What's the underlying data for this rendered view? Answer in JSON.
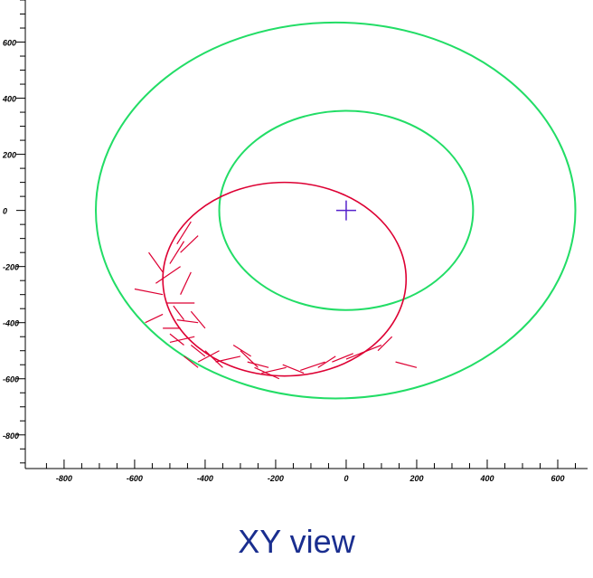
{
  "caption": "XY view",
  "chart_data": {
    "type": "scatter",
    "xlim": [
      -910,
      700
    ],
    "ylim": [
      -920,
      750
    ],
    "x_ticks": [
      -800,
      -600,
      -400,
      -200,
      0,
      200,
      400,
      600
    ],
    "y_ticks": [
      600,
      400,
      200,
      0,
      -200,
      -400,
      -600,
      -800
    ],
    "x_tick_labels": [
      "-800",
      "-600",
      "-400",
      "-200",
      "0",
      "200",
      "400",
      "600"
    ],
    "y_tick_labels": [
      "600",
      "400",
      "200",
      "0",
      "-200",
      "-400",
      "-600",
      "-800"
    ],
    "grid": false,
    "colors": {
      "circles": "#22dd66",
      "track": "#dd0033",
      "marker": "#5522cc",
      "axis": "#000000"
    },
    "detector_circles": [
      {
        "cx": -30,
        "cy": 0,
        "rx": 680,
        "ry": 670
      },
      {
        "cx": 0,
        "cy": 0,
        "rx": 360,
        "ry": 355
      }
    ],
    "track_ellipse": {
      "cx": -175,
      "cy": -245,
      "rx": 345,
      "ry": 345
    },
    "origin_marker": {
      "x": 0,
      "y": 0
    },
    "hit_segments": [
      [
        -480,
        -120,
        -440,
        -40
      ],
      [
        -470,
        -150,
        -420,
        -90
      ],
      [
        -500,
        -190,
        -460,
        -110
      ],
      [
        -560,
        -150,
        -520,
        -220
      ],
      [
        -540,
        -260,
        -470,
        -200
      ],
      [
        -600,
        -280,
        -520,
        -300
      ],
      [
        -470,
        -300,
        -440,
        -220
      ],
      [
        -510,
        -330,
        -430,
        -330
      ],
      [
        -490,
        -340,
        -460,
        -390
      ],
      [
        -480,
        -390,
        -420,
        -400
      ],
      [
        -520,
        -420,
        -470,
        -420
      ],
      [
        -500,
        -470,
        -430,
        -450
      ],
      [
        -440,
        -480,
        -400,
        -520
      ],
      [
        -460,
        -520,
        -420,
        -560
      ],
      [
        -420,
        -540,
        -360,
        -500
      ],
      [
        -400,
        -500,
        -350,
        -560
      ],
      [
        -370,
        -540,
        -300,
        -520
      ],
      [
        -320,
        -480,
        -270,
        -520
      ],
      [
        -300,
        -500,
        -250,
        -560
      ],
      [
        -280,
        -540,
        -220,
        -560
      ],
      [
        -260,
        -560,
        -190,
        -600
      ],
      [
        -240,
        -580,
        -170,
        -560
      ],
      [
        -180,
        -550,
        -120,
        -580
      ],
      [
        -130,
        -570,
        -60,
        -540
      ],
      [
        -80,
        -560,
        -30,
        -520
      ],
      [
        -40,
        -540,
        20,
        -510
      ],
      [
        0,
        -530,
        60,
        -500
      ],
      [
        40,
        -510,
        100,
        -480
      ],
      [
        90,
        -500,
        130,
        -450
      ],
      [
        140,
        -540,
        200,
        -560
      ],
      [
        -440,
        -360,
        -400,
        -420
      ],
      [
        -500,
        -440,
        -460,
        -480
      ],
      [
        -570,
        -400,
        -520,
        -370
      ]
    ]
  }
}
